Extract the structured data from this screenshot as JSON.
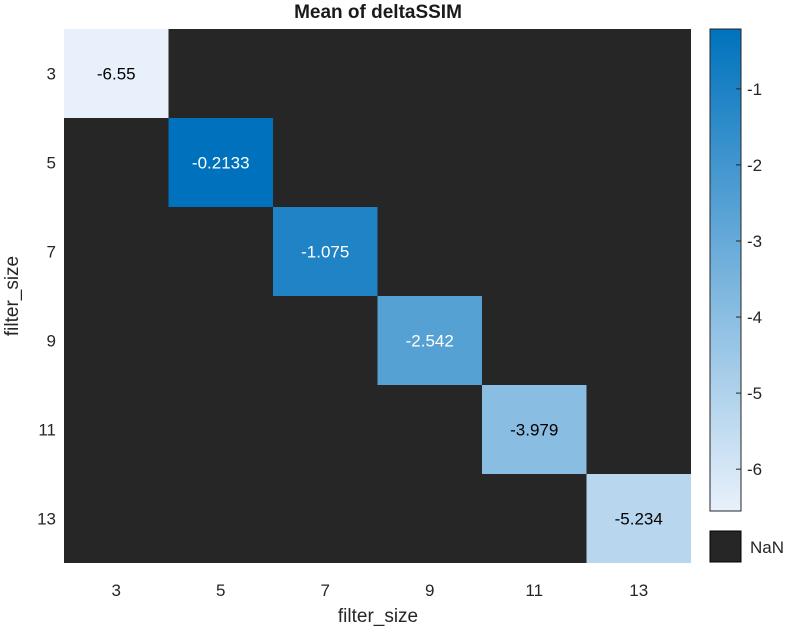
{
  "chart_data": {
    "type": "heatmap",
    "title": "Mean of deltaSSIM",
    "xlabel": "filter_size",
    "ylabel": "filter_size",
    "x_categories": [
      "3",
      "5",
      "7",
      "9",
      "11",
      "13"
    ],
    "y_categories": [
      "3",
      "5",
      "7",
      "9",
      "11",
      "13"
    ],
    "cells": [
      {
        "x": "3",
        "y": "3",
        "value": -6.55,
        "label": "-6.55"
      },
      {
        "x": "5",
        "y": "5",
        "value": -0.2133,
        "label": "-0.2133"
      },
      {
        "x": "7",
        "y": "7",
        "value": -1.075,
        "label": "-1.075"
      },
      {
        "x": "9",
        "y": "9",
        "value": -2.542,
        "label": "-2.542"
      },
      {
        "x": "11",
        "y": "11",
        "value": -3.979,
        "label": "-3.979"
      },
      {
        "x": "13",
        "y": "13",
        "value": -5.234,
        "label": "-5.234"
      }
    ],
    "missing_value_label": "NaN",
    "colorbar": {
      "ticks": [
        -1,
        -2,
        -3,
        -4,
        -5,
        -6
      ],
      "tick_labels": [
        "-1",
        "-2",
        "-3",
        "-4",
        "-5",
        "-6"
      ],
      "range": [
        -6.55,
        -0.2133
      ],
      "colormap_low": "#e8f1fb",
      "colormap_high": "#0072bd"
    },
    "colors": {
      "nan": "#262626",
      "text_dark": "#000000",
      "text_light": "#ffffff"
    }
  }
}
